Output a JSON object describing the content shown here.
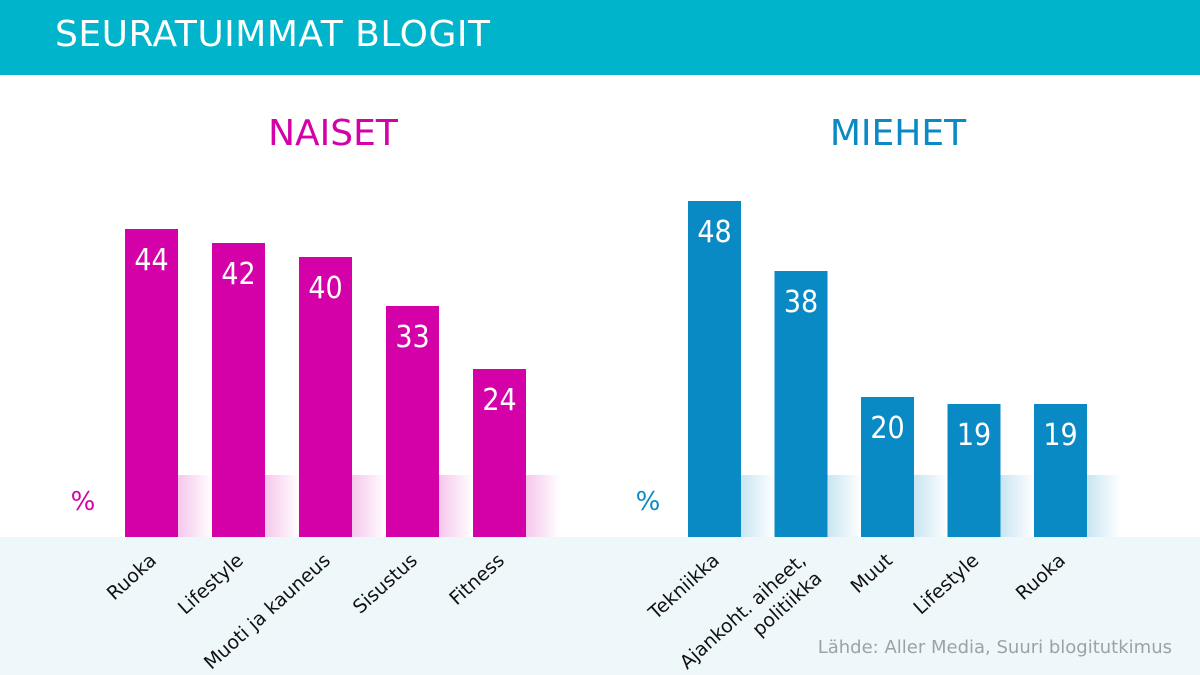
{
  "header": {
    "title": "SEURATUIMMAT BLOGIT"
  },
  "source": "Lähde: Aller Media, Suuri blogitutkimus",
  "colors": {
    "header": "#00b4cb",
    "naiset": "#d400a8",
    "miehet": "#0a8ac4",
    "floor": "#eef7f9"
  },
  "chart_data": [
    {
      "type": "bar",
      "title": "NAISET",
      "unit": "%",
      "categories": [
        "Ruoka",
        "Lifestyle",
        "Muoti ja kauneus",
        "Sisustus",
        "Fitness"
      ],
      "values": [
        44,
        42,
        40,
        33,
        24
      ],
      "ylim": [
        0,
        50
      ],
      "grid": false
    },
    {
      "type": "bar",
      "title": "MIEHET",
      "unit": "%",
      "categories": [
        "Tekniikka",
        "Ajankoht. aiheet, politiikka",
        "Muut",
        "Lifestyle",
        "Ruoka"
      ],
      "values": [
        48,
        38,
        20,
        19,
        19
      ],
      "ylim": [
        0,
        50
      ],
      "grid": false
    }
  ]
}
